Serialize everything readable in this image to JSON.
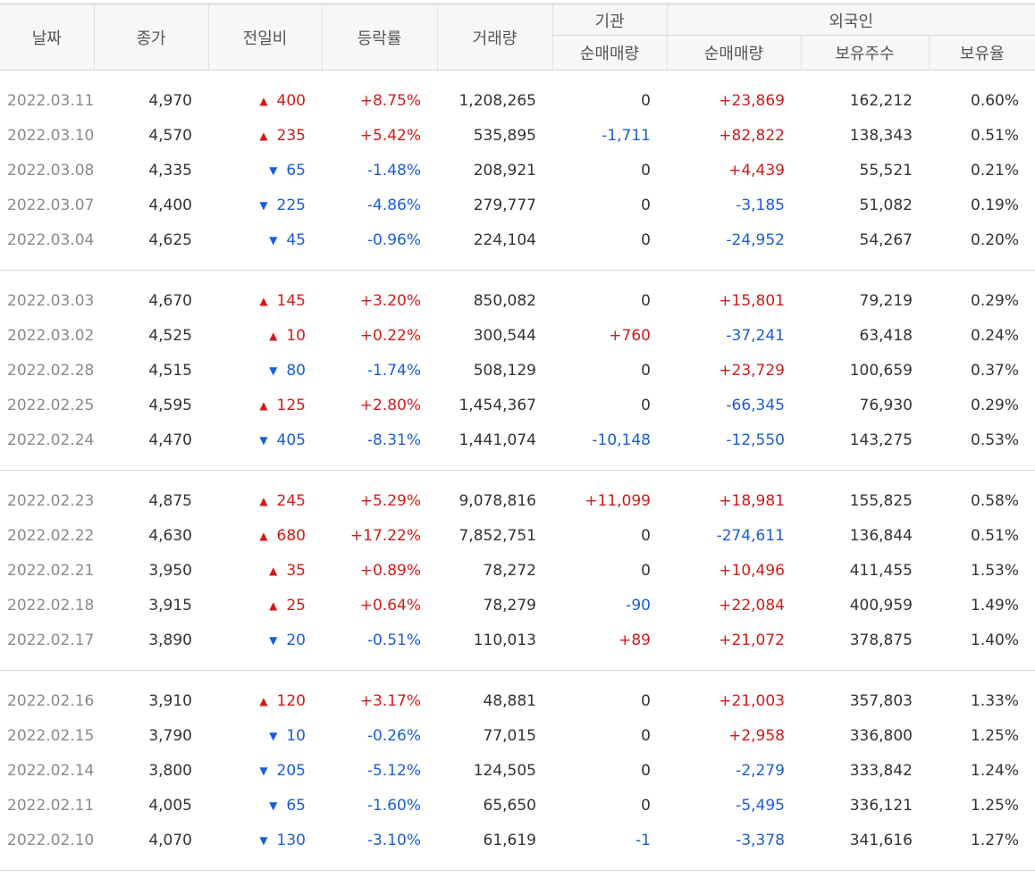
{
  "header": {
    "date": "날짜",
    "close": "종가",
    "change": "전일비",
    "rate": "등락률",
    "volume": "거래량",
    "institution": "기관",
    "foreign": "외국인",
    "inst_net": "순매매량",
    "frgn_net": "순매매량",
    "frgn_shares": "보유주수",
    "frgn_ratio": "보유율"
  },
  "groups": [
    {
      "rows": [
        {
          "date": "2022.03.11",
          "close": "4,970",
          "dir": "up",
          "arrow": "▲",
          "change": "400",
          "rate": "+8.75%",
          "volume": "1,208,265",
          "inst": "0",
          "inst_dir": "none",
          "frgn": "+23,869",
          "frgn_dir": "up",
          "shares": "162,212",
          "ratio": "0.60%"
        },
        {
          "date": "2022.03.10",
          "close": "4,570",
          "dir": "up",
          "arrow": "▲",
          "change": "235",
          "rate": "+5.42%",
          "volume": "535,895",
          "inst": "-1,711",
          "inst_dir": "down",
          "frgn": "+82,822",
          "frgn_dir": "up",
          "shares": "138,343",
          "ratio": "0.51%"
        },
        {
          "date": "2022.03.08",
          "close": "4,335",
          "dir": "down",
          "arrow": "▼",
          "change": "65",
          "rate": "-1.48%",
          "volume": "208,921",
          "inst": "0",
          "inst_dir": "none",
          "frgn": "+4,439",
          "frgn_dir": "up",
          "shares": "55,521",
          "ratio": "0.21%"
        },
        {
          "date": "2022.03.07",
          "close": "4,400",
          "dir": "down",
          "arrow": "▼",
          "change": "225",
          "rate": "-4.86%",
          "volume": "279,777",
          "inst": "0",
          "inst_dir": "none",
          "frgn": "-3,185",
          "frgn_dir": "down",
          "shares": "51,082",
          "ratio": "0.19%"
        },
        {
          "date": "2022.03.04",
          "close": "4,625",
          "dir": "down",
          "arrow": "▼",
          "change": "45",
          "rate": "-0.96%",
          "volume": "224,104",
          "inst": "0",
          "inst_dir": "none",
          "frgn": "-24,952",
          "frgn_dir": "down",
          "shares": "54,267",
          "ratio": "0.20%"
        }
      ]
    },
    {
      "rows": [
        {
          "date": "2022.03.03",
          "close": "4,670",
          "dir": "up",
          "arrow": "▲",
          "change": "145",
          "rate": "+3.20%",
          "volume": "850,082",
          "inst": "0",
          "inst_dir": "none",
          "frgn": "+15,801",
          "frgn_dir": "up",
          "shares": "79,219",
          "ratio": "0.29%"
        },
        {
          "date": "2022.03.02",
          "close": "4,525",
          "dir": "up",
          "arrow": "▲",
          "change": "10",
          "rate": "+0.22%",
          "volume": "300,544",
          "inst": "+760",
          "inst_dir": "up",
          "frgn": "-37,241",
          "frgn_dir": "down",
          "shares": "63,418",
          "ratio": "0.24%"
        },
        {
          "date": "2022.02.28",
          "close": "4,515",
          "dir": "down",
          "arrow": "▼",
          "change": "80",
          "rate": "-1.74%",
          "volume": "508,129",
          "inst": "0",
          "inst_dir": "none",
          "frgn": "+23,729",
          "frgn_dir": "up",
          "shares": "100,659",
          "ratio": "0.37%"
        },
        {
          "date": "2022.02.25",
          "close": "4,595",
          "dir": "up",
          "arrow": "▲",
          "change": "125",
          "rate": "+2.80%",
          "volume": "1,454,367",
          "inst": "0",
          "inst_dir": "none",
          "frgn": "-66,345",
          "frgn_dir": "down",
          "shares": "76,930",
          "ratio": "0.29%"
        },
        {
          "date": "2022.02.24",
          "close": "4,470",
          "dir": "down",
          "arrow": "▼",
          "change": "405",
          "rate": "-8.31%",
          "volume": "1,441,074",
          "inst": "-10,148",
          "inst_dir": "down",
          "frgn": "-12,550",
          "frgn_dir": "down",
          "shares": "143,275",
          "ratio": "0.53%"
        }
      ]
    },
    {
      "rows": [
        {
          "date": "2022.02.23",
          "close": "4,875",
          "dir": "up",
          "arrow": "▲",
          "change": "245",
          "rate": "+5.29%",
          "volume": "9,078,816",
          "inst": "+11,099",
          "inst_dir": "up",
          "frgn": "+18,981",
          "frgn_dir": "up",
          "shares": "155,825",
          "ratio": "0.58%"
        },
        {
          "date": "2022.02.22",
          "close": "4,630",
          "dir": "up",
          "arrow": "▲",
          "change": "680",
          "rate": "+17.22%",
          "volume": "7,852,751",
          "inst": "0",
          "inst_dir": "none",
          "frgn": "-274,611",
          "frgn_dir": "down",
          "shares": "136,844",
          "ratio": "0.51%"
        },
        {
          "date": "2022.02.21",
          "close": "3,950",
          "dir": "up",
          "arrow": "▲",
          "change": "35",
          "rate": "+0.89%",
          "volume": "78,272",
          "inst": "0",
          "inst_dir": "none",
          "frgn": "+10,496",
          "frgn_dir": "up",
          "shares": "411,455",
          "ratio": "1.53%"
        },
        {
          "date": "2022.02.18",
          "close": "3,915",
          "dir": "up",
          "arrow": "▲",
          "change": "25",
          "rate": "+0.64%",
          "volume": "78,279",
          "inst": "-90",
          "inst_dir": "down",
          "frgn": "+22,084",
          "frgn_dir": "up",
          "shares": "400,959",
          "ratio": "1.49%"
        },
        {
          "date": "2022.02.17",
          "close": "3,890",
          "dir": "down",
          "arrow": "▼",
          "change": "20",
          "rate": "-0.51%",
          "volume": "110,013",
          "inst": "+89",
          "inst_dir": "up",
          "frgn": "+21,072",
          "frgn_dir": "up",
          "shares": "378,875",
          "ratio": "1.40%"
        }
      ]
    },
    {
      "rows": [
        {
          "date": "2022.02.16",
          "close": "3,910",
          "dir": "up",
          "arrow": "▲",
          "change": "120",
          "rate": "+3.17%",
          "volume": "48,881",
          "inst": "0",
          "inst_dir": "none",
          "frgn": "+21,003",
          "frgn_dir": "up",
          "shares": "357,803",
          "ratio": "1.33%"
        },
        {
          "date": "2022.02.15",
          "close": "3,790",
          "dir": "down",
          "arrow": "▼",
          "change": "10",
          "rate": "-0.26%",
          "volume": "77,015",
          "inst": "0",
          "inst_dir": "none",
          "frgn": "+2,958",
          "frgn_dir": "up",
          "shares": "336,800",
          "ratio": "1.25%"
        },
        {
          "date": "2022.02.14",
          "close": "3,800",
          "dir": "down",
          "arrow": "▼",
          "change": "205",
          "rate": "-5.12%",
          "volume": "124,505",
          "inst": "0",
          "inst_dir": "none",
          "frgn": "-2,279",
          "frgn_dir": "down",
          "shares": "333,842",
          "ratio": "1.24%"
        },
        {
          "date": "2022.02.11",
          "close": "4,005",
          "dir": "down",
          "arrow": "▼",
          "change": "65",
          "rate": "-1.60%",
          "volume": "65,650",
          "inst": "0",
          "inst_dir": "none",
          "frgn": "-5,495",
          "frgn_dir": "down",
          "shares": "336,121",
          "ratio": "1.25%"
        },
        {
          "date": "2022.02.10",
          "close": "4,070",
          "dir": "down",
          "arrow": "▼",
          "change": "130",
          "rate": "-3.10%",
          "volume": "61,619",
          "inst": "-1",
          "inst_dir": "down",
          "frgn": "-3,378",
          "frgn_dir": "down",
          "shares": "341,616",
          "ratio": "1.27%"
        }
      ]
    }
  ],
  "colors": {
    "up": "#d01b1b",
    "down": "#1c5cd6",
    "header_bg": "#f7f7f7",
    "date_text": "#8a8a8a"
  }
}
